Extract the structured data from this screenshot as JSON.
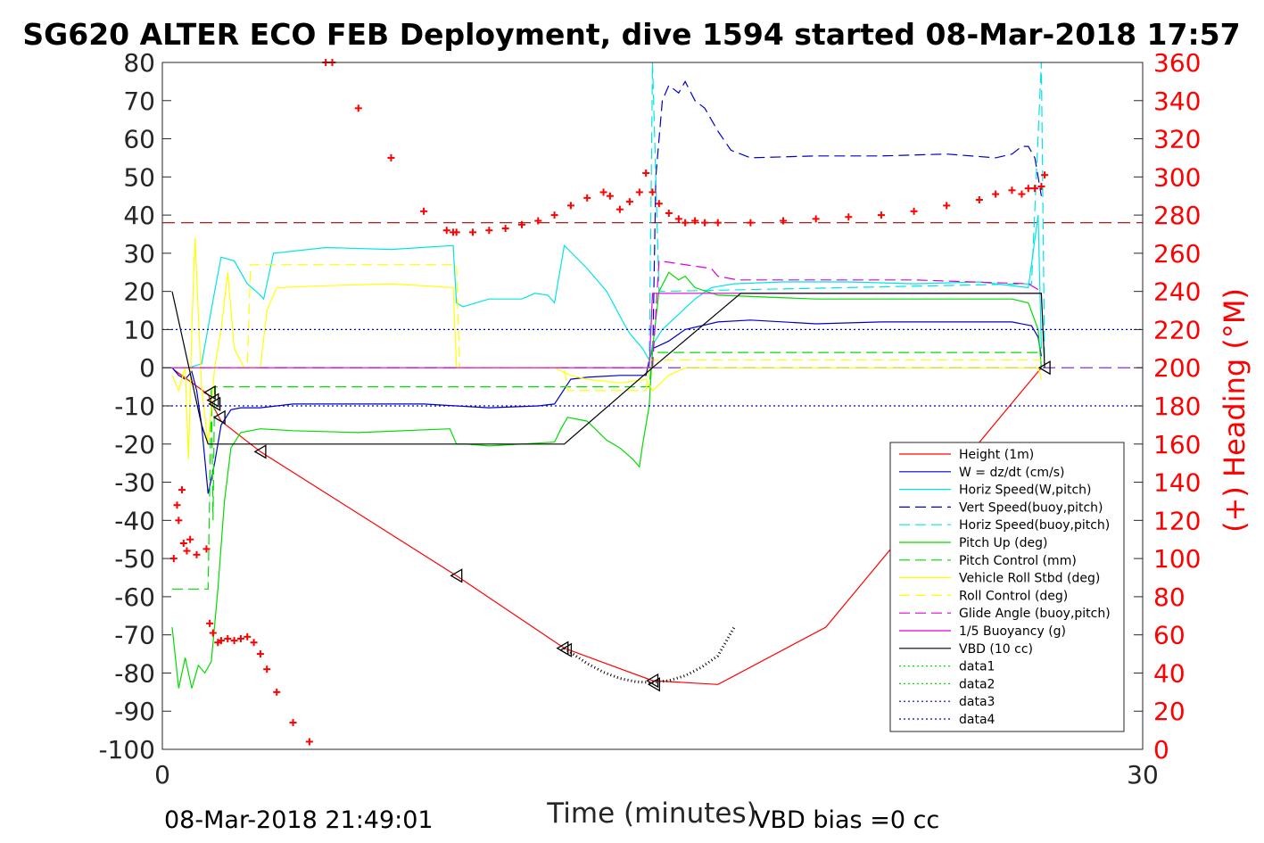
{
  "chart_data": {
    "type": "line",
    "title": "SG620 ALTER ECO FEB Deployment, dive 1594 started 08-Mar-2018 17:57",
    "xlabel": "Time (minutes)",
    "ylabel_right": "(+) Heading (°M)",
    "xlim": [
      0,
      30
    ],
    "ylim": [
      -100,
      80
    ],
    "y2lim": [
      0,
      360
    ],
    "xticks": [
      "0",
      "30"
    ],
    "yticks": [
      "80",
      "70",
      "60",
      "50",
      "40",
      "30",
      "20",
      "10",
      "0",
      "-10",
      "-20",
      "-30",
      "-40",
      "-50",
      "-60",
      "-70",
      "-80",
      "-90",
      "-100"
    ],
    "y2ticks": [
      "360",
      "340",
      "320",
      "300",
      "280",
      "260",
      "240",
      "220",
      "200",
      "180",
      "160",
      "140",
      "120",
      "100",
      "80",
      "60",
      "40",
      "20",
      "0"
    ],
    "footer_left": "08-Mar-2018 21:49:01",
    "footer_right": "VBD bias =0 cc",
    "legend": [
      {
        "label": "Height (1m)",
        "color": "#ff0000",
        "dash": ""
      },
      {
        "label": "W = dz/dt (cm/s)",
        "color": "#0000cc",
        "dash": ""
      },
      {
        "label": "Horiz Speed(W,pitch)",
        "color": "#00e5e5",
        "dash": ""
      },
      {
        "label": "Vert Speed(buoy,pitch)",
        "color": "#0000cc",
        "dash": "12,6"
      },
      {
        "label": "Horiz Speed(buoy,pitch)",
        "color": "#00e5e5",
        "dash": "12,6"
      },
      {
        "label": "Pitch Up (deg)",
        "color": "#00dd00",
        "dash": ""
      },
      {
        "label": "Pitch Control (mm)",
        "color": "#00dd00",
        "dash": "12,6"
      },
      {
        "label": "Vehicle Roll Stbd (deg)",
        "color": "#ffff00",
        "dash": ""
      },
      {
        "label": "Roll Control (deg)",
        "color": "#ffff00",
        "dash": "12,6"
      },
      {
        "label": "Glide Angle (buoy,pitch)",
        "color": "#dd00dd",
        "dash": "12,6"
      },
      {
        "label": "1/5 Buoyancy (g)",
        "color": "#dd00dd",
        "dash": ""
      },
      {
        "label": "VBD (10 cc)",
        "color": "#000000",
        "dash": ""
      },
      {
        "label": "data1",
        "color": "#00dd00",
        "dash": "2,3"
      },
      {
        "label": "data2",
        "color": "#00dd00",
        "dash": "2,3"
      },
      {
        "label": "data3",
        "color": "#0000cc",
        "dash": "2,3"
      },
      {
        "label": "data4",
        "color": "#0000cc",
        "dash": "2,3"
      }
    ],
    "series": [
      {
        "name": "Height (1m)",
        "color": "#ff0000",
        "dash": "",
        "x": [
          0.35,
          1.4,
          1.55,
          1.8,
          3.0,
          9.0,
          12.3,
          15.0,
          17.0,
          20.3,
          26.9
        ],
        "y": [
          -0.5,
          -7,
          -10,
          -14,
          -22,
          -54.5,
          -73.5,
          -82,
          -83,
          -68,
          0
        ]
      },
      {
        "name": "W = dz/dt (cm/s)",
        "color": "#0000cc",
        "dash": "",
        "x": [
          0.3,
          0.5,
          0.7,
          0.9,
          1.05,
          1.2,
          1.4,
          1.6,
          1.8,
          2.1,
          2.4,
          3.0,
          4.0,
          6.0,
          8.0,
          9.0,
          10.0,
          11.5,
          12.0,
          12.5,
          13.0,
          14.0,
          14.8,
          14.9,
          15.0,
          15.5,
          16.0,
          17.0,
          18.0,
          20.0,
          22.0,
          24.0,
          26.0,
          26.6,
          26.8,
          26.9
        ],
        "y": [
          0,
          -2,
          -3,
          -1,
          -6,
          -15,
          -33,
          -25,
          -15,
          -11,
          -10.5,
          -10.5,
          -9.5,
          -9.5,
          -9.5,
          -10,
          -10.5,
          -10,
          -9.5,
          -3,
          -2.5,
          -2,
          -2,
          2,
          5,
          7,
          10,
          12,
          12.5,
          11.5,
          12,
          12,
          12,
          11,
          8,
          3
        ]
      },
      {
        "name": "Horiz Speed(W,pitch)",
        "color": "#00e5e5",
        "dash": "",
        "x": [
          0.3,
          0.8,
          1.2,
          1.6,
          1.8,
          2.2,
          2.6,
          3.0,
          3.1,
          3.4,
          5,
          7,
          8.9,
          9.0,
          9.2,
          10,
          11,
          11.4,
          11.8,
          12.0,
          12.3,
          13.0,
          13.6,
          14.1,
          14.3,
          14.5,
          14.7,
          14.9,
          15.0,
          15.3,
          15.8,
          16.3,
          16.8,
          17.5,
          19,
          21,
          23,
          25,
          26.5,
          26.8,
          26.9
        ],
        "y": [
          0,
          0,
          1,
          20,
          29,
          28,
          22,
          19,
          18,
          30,
          31.5,
          31,
          32,
          17,
          16,
          18,
          18,
          19.5,
          19,
          17,
          32,
          26,
          20,
          12,
          9,
          7,
          5,
          2,
          6,
          10,
          14,
          18,
          21,
          22,
          22.5,
          22.5,
          22,
          22.5,
          21,
          40,
          5
        ]
      },
      {
        "name": "Vert Speed(buoy,pitch)",
        "color": "#0000cc",
        "dash": "12,6",
        "x": [
          15.0,
          15.1,
          15.3,
          15.5,
          15.8,
          16.0,
          16.3,
          16.6,
          17.0,
          17.4,
          18.0,
          20,
          22,
          24,
          25.5,
          26.0,
          26.3,
          26.5,
          26.7,
          26.8,
          26.9
        ],
        "y": [
          0,
          50,
          70,
          74,
          72,
          75,
          70,
          68,
          62,
          57,
          55,
          55.5,
          55.5,
          56,
          55,
          56,
          58,
          58,
          55,
          50,
          45
        ]
      },
      {
        "name": "Horiz Speed(buoy,pitch)",
        "color": "#00e5e5",
        "dash": "12,6",
        "x": [
          14.9,
          15.0,
          15.2,
          26.6,
          26.9,
          27.0
        ],
        "y": [
          0,
          80,
          20,
          22,
          80,
          0
        ]
      },
      {
        "name": "Pitch Up (deg)",
        "color": "#00dd00",
        "dash": "",
        "x": [
          0.3,
          0.5,
          0.7,
          0.9,
          1.1,
          1.3,
          1.5,
          1.7,
          1.9,
          2.1,
          2.4,
          3,
          4,
          6,
          8.8,
          9.0,
          9.3,
          10.0,
          11.0,
          12.0,
          12.2,
          12.4,
          13,
          13.6,
          14,
          14.4,
          14.6,
          14.7,
          14.9,
          15.0,
          15.2,
          15.5,
          15.8,
          16.0,
          16.3,
          17,
          20,
          23,
          26,
          26.5,
          26.8,
          26.9
        ],
        "y": [
          -68,
          -84,
          -76,
          -84,
          -78,
          -80,
          -77,
          -58,
          -35,
          -21,
          -17,
          -16,
          -16.5,
          -17,
          -16,
          -20,
          -20,
          -20.5,
          -20,
          -19.5,
          -16,
          -13,
          -14,
          -19,
          -21,
          -24,
          -26,
          -20,
          -10,
          5,
          20,
          25,
          23,
          24,
          21,
          19,
          18,
          18,
          18,
          17,
          10,
          0
        ]
      },
      {
        "name": "Pitch Control (mm)",
        "color": "#00dd00",
        "dash": "12,6",
        "x": [
          0.3,
          1.4,
          1.5,
          1.55,
          1.6,
          14.9,
          15.0,
          26.9
        ],
        "y": [
          -58,
          -58,
          -5,
          -40,
          -5,
          -5,
          4,
          4
        ]
      },
      {
        "name": "Vehicle Roll Stbd (deg)",
        "color": "#ffff00",
        "dash": "",
        "x": [
          0.3,
          0.5,
          0.7,
          0.8,
          0.9,
          1.0,
          1.2,
          1.4,
          1.6,
          1.8,
          2.0,
          2.2,
          2.5,
          3.0,
          3.2,
          3.5,
          5,
          7,
          8.9,
          9.0,
          9.2,
          10,
          12,
          12.5,
          13,
          14,
          14.8,
          15.0,
          15.5,
          16,
          18,
          20,
          22,
          24,
          26,
          26.8,
          26.9
        ],
        "y": [
          -2,
          -6,
          0,
          -24,
          10,
          34,
          -5,
          -20,
          0,
          10,
          25,
          5,
          0,
          0,
          15,
          21,
          21.5,
          22,
          21,
          0,
          0,
          0,
          0,
          -2,
          -3,
          -4,
          -3,
          -6,
          -2,
          0,
          0,
          0,
          0,
          0,
          0,
          0,
          -3
        ]
      },
      {
        "name": "Roll Control (deg)",
        "color": "#ffff00",
        "dash": "12,6",
        "x": [
          0.3,
          2.6,
          2.7,
          3.0,
          3.1,
          9.0,
          9.1,
          12.3,
          12.4,
          14.8,
          14.9,
          26.9
        ],
        "y": [
          0,
          0,
          27,
          27,
          27,
          27,
          0,
          0,
          -6,
          -6,
          2,
          2
        ]
      },
      {
        "name": "Glide Angle (buoy,pitch)",
        "color": "#dd00dd",
        "dash": "12,6",
        "x": [
          15.0,
          15.2,
          16.8,
          17.0,
          17.6,
          20,
          23,
          26.5,
          26.9
        ],
        "y": [
          0,
          28,
          26,
          24,
          23,
          23,
          23,
          22,
          20
        ]
      },
      {
        "name": "1/5 Buoyancy (g)",
        "color": "#dd00dd",
        "dash": "",
        "x": [
          0.3,
          14.9,
          15.0,
          26.9
        ],
        "y": [
          0,
          0,
          19.5,
          19.5
        ]
      },
      {
        "name": "VBD (10 cc)",
        "color": "#000000",
        "dash": "",
        "x": [
          0.3,
          1.2,
          1.4,
          12.3,
          15.0,
          17.7,
          26.9,
          27.0
        ],
        "y": [
          20,
          -15,
          -20,
          -20,
          0,
          19.5,
          19.5,
          0
        ]
      },
      {
        "name": "data1",
        "color": "#00dd00",
        "dash": "2,3",
        "x": [],
        "y": []
      },
      {
        "name": "data2",
        "color": "#00dd00",
        "dash": "2,3",
        "x": [],
        "y": []
      },
      {
        "name": "data3",
        "color": "#0000cc",
        "dash": "2,3",
        "x": [
          0,
          30
        ],
        "y": [
          10,
          10
        ]
      },
      {
        "name": "data4",
        "color": "#0000cc",
        "dash": "2,3",
        "x": [
          0,
          30
        ],
        "y": [
          -10,
          -10
        ]
      }
    ],
    "reference_lines": [
      {
        "name": "heading-target-line",
        "color": "#aa0000",
        "dash": "14,7",
        "y": 38
      },
      {
        "name": "zero-line",
        "color": "#8a2be2",
        "dash": "14,7",
        "y": 0
      }
    ],
    "heading_markers": {
      "name": "Heading (right axis)",
      "color": "#ff0000",
      "x": [
        0.35,
        0.45,
        0.5,
        0.6,
        0.65,
        0.75,
        0.85,
        1.05,
        1.35,
        1.45,
        1.55,
        1.7,
        1.8,
        2.0,
        2.2,
        2.4,
        2.6,
        2.8,
        3.0,
        3.2,
        3.5,
        4.0,
        4.5,
        5.0,
        5.2,
        6.0,
        7.0,
        8.0,
        8.7,
        8.9,
        9.0,
        9.5,
        10,
        10.5,
        11,
        11.5,
        12,
        12.5,
        13,
        13.5,
        13.7,
        14.0,
        14.3,
        14.6,
        14.8,
        15.0,
        15.2,
        15.5,
        15.8,
        16.0,
        16.3,
        16.6,
        17,
        18,
        19,
        20,
        21,
        22,
        23,
        24,
        25,
        25.5,
        26,
        26.3,
        26.5,
        26.7,
        26.9,
        27.0
      ],
      "y": [
        100,
        128,
        120,
        136,
        108,
        104,
        110,
        102,
        105,
        66,
        61,
        56,
        57,
        58,
        57,
        58,
        59,
        56,
        50,
        42,
        30,
        14,
        4,
        360,
        360,
        336,
        310,
        282,
        272,
        271,
        271,
        271,
        272,
        273,
        275,
        277,
        280,
        285,
        289,
        292,
        290,
        283,
        287,
        292,
        302,
        292,
        286,
        281,
        278,
        276,
        277,
        276,
        276,
        276,
        277,
        278,
        279,
        280,
        282,
        285,
        288,
        291,
        293,
        291,
        294,
        294,
        295,
        301
      ]
    },
    "triangle_markers": {
      "x": [
        1.45,
        1.55,
        1.6,
        1.75,
        3.0,
        9.0,
        12.25,
        12.35,
        15.0,
        15.05,
        27.0
      ],
      "y": [
        -6.5,
        -8.5,
        -9.5,
        -13,
        -22,
        -54.5,
        -73.5,
        -74,
        -82,
        -83,
        0
      ]
    },
    "dotted_curve": {
      "x": [
        12.3,
        13,
        13.5,
        14,
        14.5,
        15,
        15.5,
        16,
        16.5,
        17,
        17.5
      ],
      "y": [
        -73.5,
        -77.5,
        -79.8,
        -81.4,
        -82.3,
        -82.5,
        -82,
        -80.7,
        -78.5,
        -75.5,
        -68
      ]
    }
  }
}
